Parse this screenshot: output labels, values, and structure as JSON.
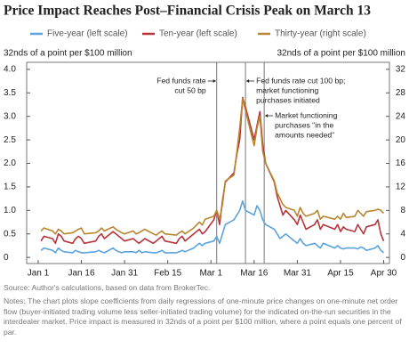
{
  "chart_data": {
    "type": "line",
    "title": "Price Impact Reaches Post–Financial Crisis Peak on March 13",
    "ylabel": "32nds of a point per $100 million",
    "y2label": "32nds of a point per $100 million",
    "x": [
      1,
      2,
      5,
      6,
      7,
      8,
      9,
      12,
      13,
      14,
      15,
      16,
      20,
      21,
      22,
      23,
      26,
      27,
      28,
      29,
      30,
      33,
      34,
      35,
      36,
      37,
      40,
      41,
      42,
      43,
      44,
      48,
      49,
      50,
      51,
      54,
      55,
      56,
      57,
      58,
      61,
      62,
      63,
      64,
      65,
      68,
      69,
      70,
      71,
      72,
      75,
      76,
      77,
      78,
      79,
      82,
      83,
      84,
      85,
      86,
      89,
      90,
      91,
      92,
      93,
      96,
      97,
      98,
      99,
      103,
      104,
      105,
      106,
      107,
      110,
      111,
      112,
      113,
      114,
      117,
      118,
      119,
      120
    ],
    "xlim": [
      -4,
      122
    ],
    "xticks": [
      {
        "value": 0,
        "label": "Jan 1"
      },
      {
        "value": 15,
        "label": "Jan 16"
      },
      {
        "value": 30,
        "label": "Jan 31"
      },
      {
        "value": 45,
        "label": "Feb 15"
      },
      {
        "value": 60,
        "label": "Mar 1"
      },
      {
        "value": 75,
        "label": "Mar 16"
      },
      {
        "value": 90,
        "label": "Mar 31"
      },
      {
        "value": 105,
        "label": "Apr 15"
      },
      {
        "value": 120,
        "label": "Apr 30"
      }
    ],
    "ylim": [
      -0.13,
      4.15
    ],
    "yticks": [
      {
        "value": 0,
        "label": "0"
      },
      0.5,
      {
        "value": 1,
        "label": "1.0"
      },
      1.5,
      {
        "value": 2,
        "label": "2.0"
      },
      2.5,
      {
        "value": 3,
        "label": "3.0"
      },
      3.5,
      {
        "value": 4,
        "label": "4.0"
      }
    ],
    "y2lim": [
      -1.04,
      33.2
    ],
    "y2ticks": [
      0,
      4,
      8,
      12,
      16,
      20,
      24,
      28,
      32
    ],
    "series": [
      {
        "name": "Five-year (left scale)",
        "color": "#5ba3dc",
        "values": [
          0.15,
          0.2,
          0.15,
          0.1,
          0.2,
          0.15,
          0.12,
          0.1,
          0.15,
          0.12,
          0.1,
          0.1,
          0.12,
          0.15,
          0.12,
          0.1,
          0.2,
          0.15,
          0.12,
          0.1,
          0.12,
          0.12,
          0.1,
          0.15,
          0.1,
          0.12,
          0.1,
          0.1,
          0.12,
          0.15,
          0.1,
          0.1,
          0.12,
          0.15,
          0.12,
          0.2,
          0.25,
          0.3,
          0.25,
          0.3,
          0.35,
          0.45,
          0.3,
          0.5,
          0.7,
          0.8,
          0.9,
          1.0,
          1.2,
          1.0,
          0.9,
          1.1,
          1.0,
          0.8,
          0.7,
          0.6,
          0.5,
          0.4,
          0.45,
          0.5,
          0.35,
          0.3,
          0.4,
          0.3,
          0.25,
          0.3,
          0.25,
          0.2,
          0.3,
          0.2,
          0.25,
          0.2,
          0.18,
          0.2,
          0.2,
          0.18,
          0.22,
          0.2,
          0.15,
          0.2,
          0.25,
          0.15,
          0.1
        ]
      },
      {
        "name": "Ten-year (left scale)",
        "color": "#b8333a",
        "values": [
          0.35,
          0.45,
          0.4,
          0.3,
          0.5,
          0.45,
          0.35,
          0.3,
          0.4,
          0.45,
          0.4,
          0.3,
          0.35,
          0.45,
          0.5,
          0.4,
          0.55,
          0.5,
          0.45,
          0.4,
          0.35,
          0.4,
          0.35,
          0.3,
          0.35,
          0.4,
          0.3,
          0.35,
          0.4,
          0.45,
          0.35,
          0.3,
          0.4,
          0.45,
          0.35,
          0.5,
          0.55,
          0.6,
          0.5,
          0.55,
          0.8,
          1.0,
          0.7,
          1.2,
          1.6,
          1.8,
          2.2,
          2.5,
          3.4,
          3.2,
          2.5,
          2.8,
          3.1,
          2.4,
          2.0,
          1.6,
          1.3,
          1.1,
          0.9,
          1.0,
          0.8,
          0.7,
          0.9,
          0.75,
          0.6,
          0.7,
          0.8,
          0.6,
          0.7,
          0.6,
          0.7,
          0.55,
          0.65,
          0.6,
          0.55,
          0.7,
          0.6,
          0.5,
          0.65,
          0.7,
          0.8,
          0.5,
          0.35
        ]
      },
      {
        "name": "Thirty-year (right scale)",
        "color": "#b8862e",
        "axis": "y2",
        "values": [
          4.5,
          5,
          4.5,
          4,
          4.8,
          4.5,
          4,
          4.2,
          4.5,
          4.8,
          5,
          4,
          4.2,
          4.5,
          5,
          4.5,
          5.2,
          4.8,
          4.5,
          4.2,
          4,
          4.5,
          4,
          4.2,
          4.5,
          4.8,
          4,
          3.8,
          4.2,
          4.5,
          4,
          3.8,
          4.2,
          4.5,
          4,
          5,
          5.5,
          6,
          5.5,
          6.5,
          7,
          8,
          6.5,
          9,
          13,
          14,
          18,
          22,
          27,
          25,
          19,
          22,
          24,
          18,
          16,
          13,
          11,
          10,
          9,
          8.5,
          8,
          7,
          8.5,
          7.5,
          7,
          7.5,
          8,
          6.5,
          7,
          6.5,
          7,
          6.5,
          7.5,
          6.8,
          7,
          8,
          7.5,
          7,
          7.8,
          8,
          8.2,
          8,
          7.5
        ]
      }
    ],
    "events": [
      {
        "x": 62,
        "label": [
          "Fed funds rate",
          "cut 50 bp"
        ]
      },
      {
        "x": 72,
        "label": [
          "Fed funds rate cut 100 bp;",
          "market functioning",
          "purchases initiated"
        ]
      },
      {
        "x": 78.5,
        "label": [
          "Market functioning",
          "purchases \"in the",
          "amounts needed\""
        ]
      }
    ],
    "source": "Source: Author's calculations, based on data from BrokerTec.",
    "notes": "Notes: The chart plots slope coefficients from daily regressions of one-minute price changes on one-minute net order flow (buyer-initiated trading volume less seller-initiated trading volume) for the indicated on-the-run securities in the interdealer market. Price impact is measured in 32nds of a point per $100 million, where a point equals one percent of par."
  }
}
